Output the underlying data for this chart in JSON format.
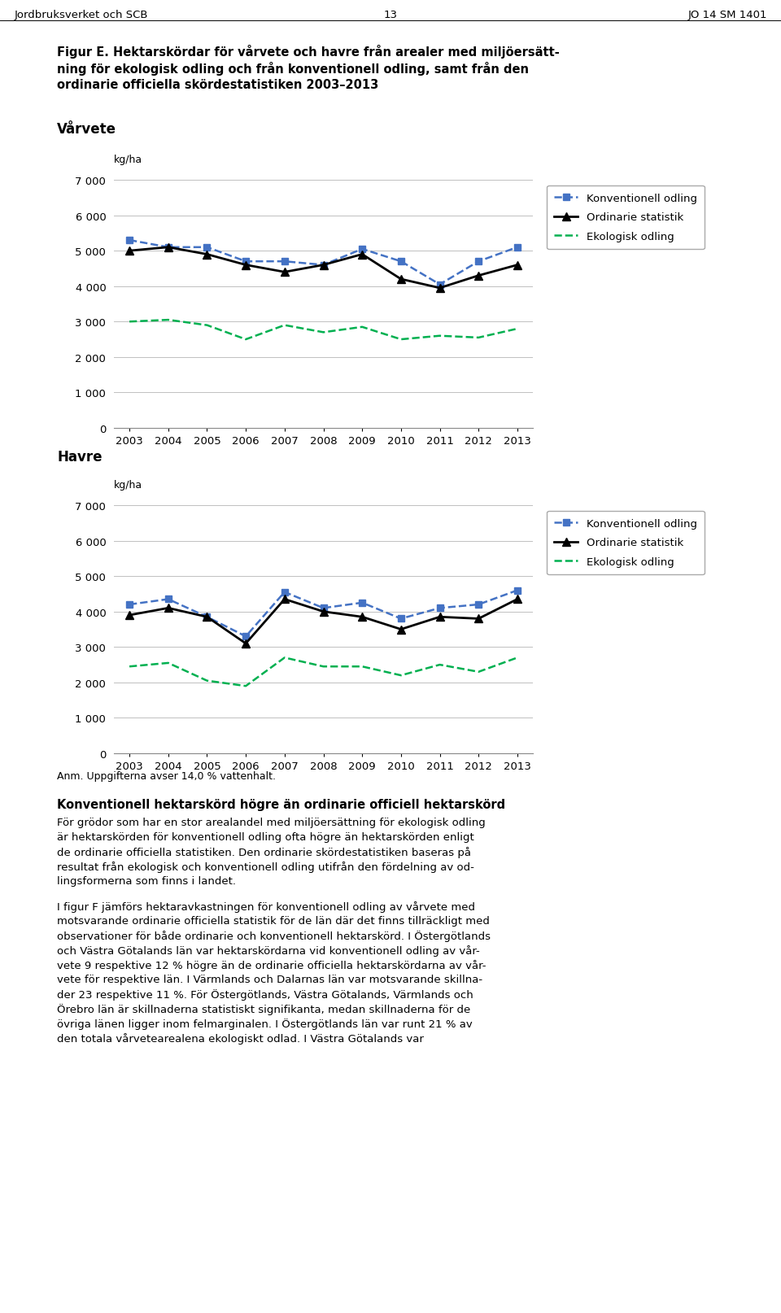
{
  "years": [
    2003,
    2004,
    2005,
    2006,
    2007,
    2008,
    2009,
    2010,
    2011,
    2012,
    2013
  ],
  "varvete": {
    "konventionell": [
      5300,
      5100,
      5100,
      4700,
      4700,
      4600,
      5050,
      4700,
      4050,
      4700,
      5100
    ],
    "ordinarie": [
      5000,
      5100,
      4900,
      4600,
      4400,
      4600,
      4900,
      4200,
      3950,
      4300,
      4600
    ],
    "ekologisk": [
      3000,
      3050,
      2900,
      2500,
      2900,
      2700,
      2850,
      2500,
      2600,
      2550,
      2800
    ]
  },
  "havre": {
    "konventionell": [
      4200,
      4350,
      3850,
      3300,
      4550,
      4100,
      4250,
      3800,
      4100,
      4200,
      4600
    ],
    "ordinarie": [
      3900,
      4100,
      3850,
      3100,
      4350,
      4000,
      3850,
      3500,
      3850,
      3800,
      4350
    ],
    "ekologisk": [
      2450,
      2550,
      2050,
      1900,
      2700,
      2450,
      2450,
      2200,
      2500,
      2300,
      2700
    ]
  },
  "section1_title": "Vårvete",
  "section2_title": "Havre",
  "ylabel": "kg/ha",
  "ylim": [
    0,
    7000
  ],
  "yticks": [
    0,
    1000,
    2000,
    3000,
    4000,
    5000,
    6000,
    7000
  ],
  "ytick_labels": [
    "0",
    "1 000",
    "2 000",
    "3 000",
    "4 000",
    "5 000",
    "6 000",
    "7 000"
  ],
  "header_left": "Jordbruksverket och SCB",
  "header_center": "13",
  "header_right": "JO 14 SM 1401",
  "fig_title_line1": "Figur E. Hektarskördar för vårvete och havre från arealer med miljöersätt-",
  "fig_title_line2": "ning för ekologisk odling och från konventionell odling, samt från den",
  "fig_title_line3": "ordinarie officiella skördestatistiken 2003–2013",
  "anm_text": "Anm. Uppgifterna avser 14,0 % vattenhalt.",
  "konv_color": "#4472c4",
  "ord_color": "#000000",
  "eko_color": "#00b050",
  "legend_labels": [
    "Konventionell odling",
    "Ordinarie statistik",
    "Ekologisk odling"
  ],
  "body_title": "Konventionell hektarskörd högre än ordinarie officiell hektarskörd",
  "body_para1_lines": [
    "För grödor som har en stor arealandel med miljöersättning för ekologisk odling",
    "är hektarskörden för konventionell odling ofta högre än hektarskörden enligt",
    "de ordinarie officiella statistiken. Den ordinarie skördestatistiken baseras på",
    "resultat från ekologisk och konventionell odling utifrån den fördelning av od-",
    "lingsformerna som finns i landet."
  ],
  "body_para2_lines": [
    "I figur F jämförs hektaravkastningen för konventionell odling av vårvete med",
    "motsvarande ordinarie officiella statistik för de län där det finns tillräckligt med",
    "observationer för både ordinarie och konventionell hektarskörd. I Östergötlands",
    "och Västra Götalands län var hektarskördarna vid konventionell odling av vår-",
    "vete 9 respektive 12 % högre än de ordinarie officiella hektarskördarna av vår-",
    "vete för respektive län. I Värmlands och Dalarnas län var motsvarande skillna-",
    "der 23 respektive 11 %. För Östergötlands, Västra Götalands, Värmlands och",
    "Örebro län är skillnaderna statistiskt signifikanta, medan skillnaderna för de",
    "övriga länen ligger inom felmarginalen. I Östergötlands län var runt 21 % av",
    "den totala vårvetearealena ekologiskt odlad. I Västra Götalands var"
  ]
}
